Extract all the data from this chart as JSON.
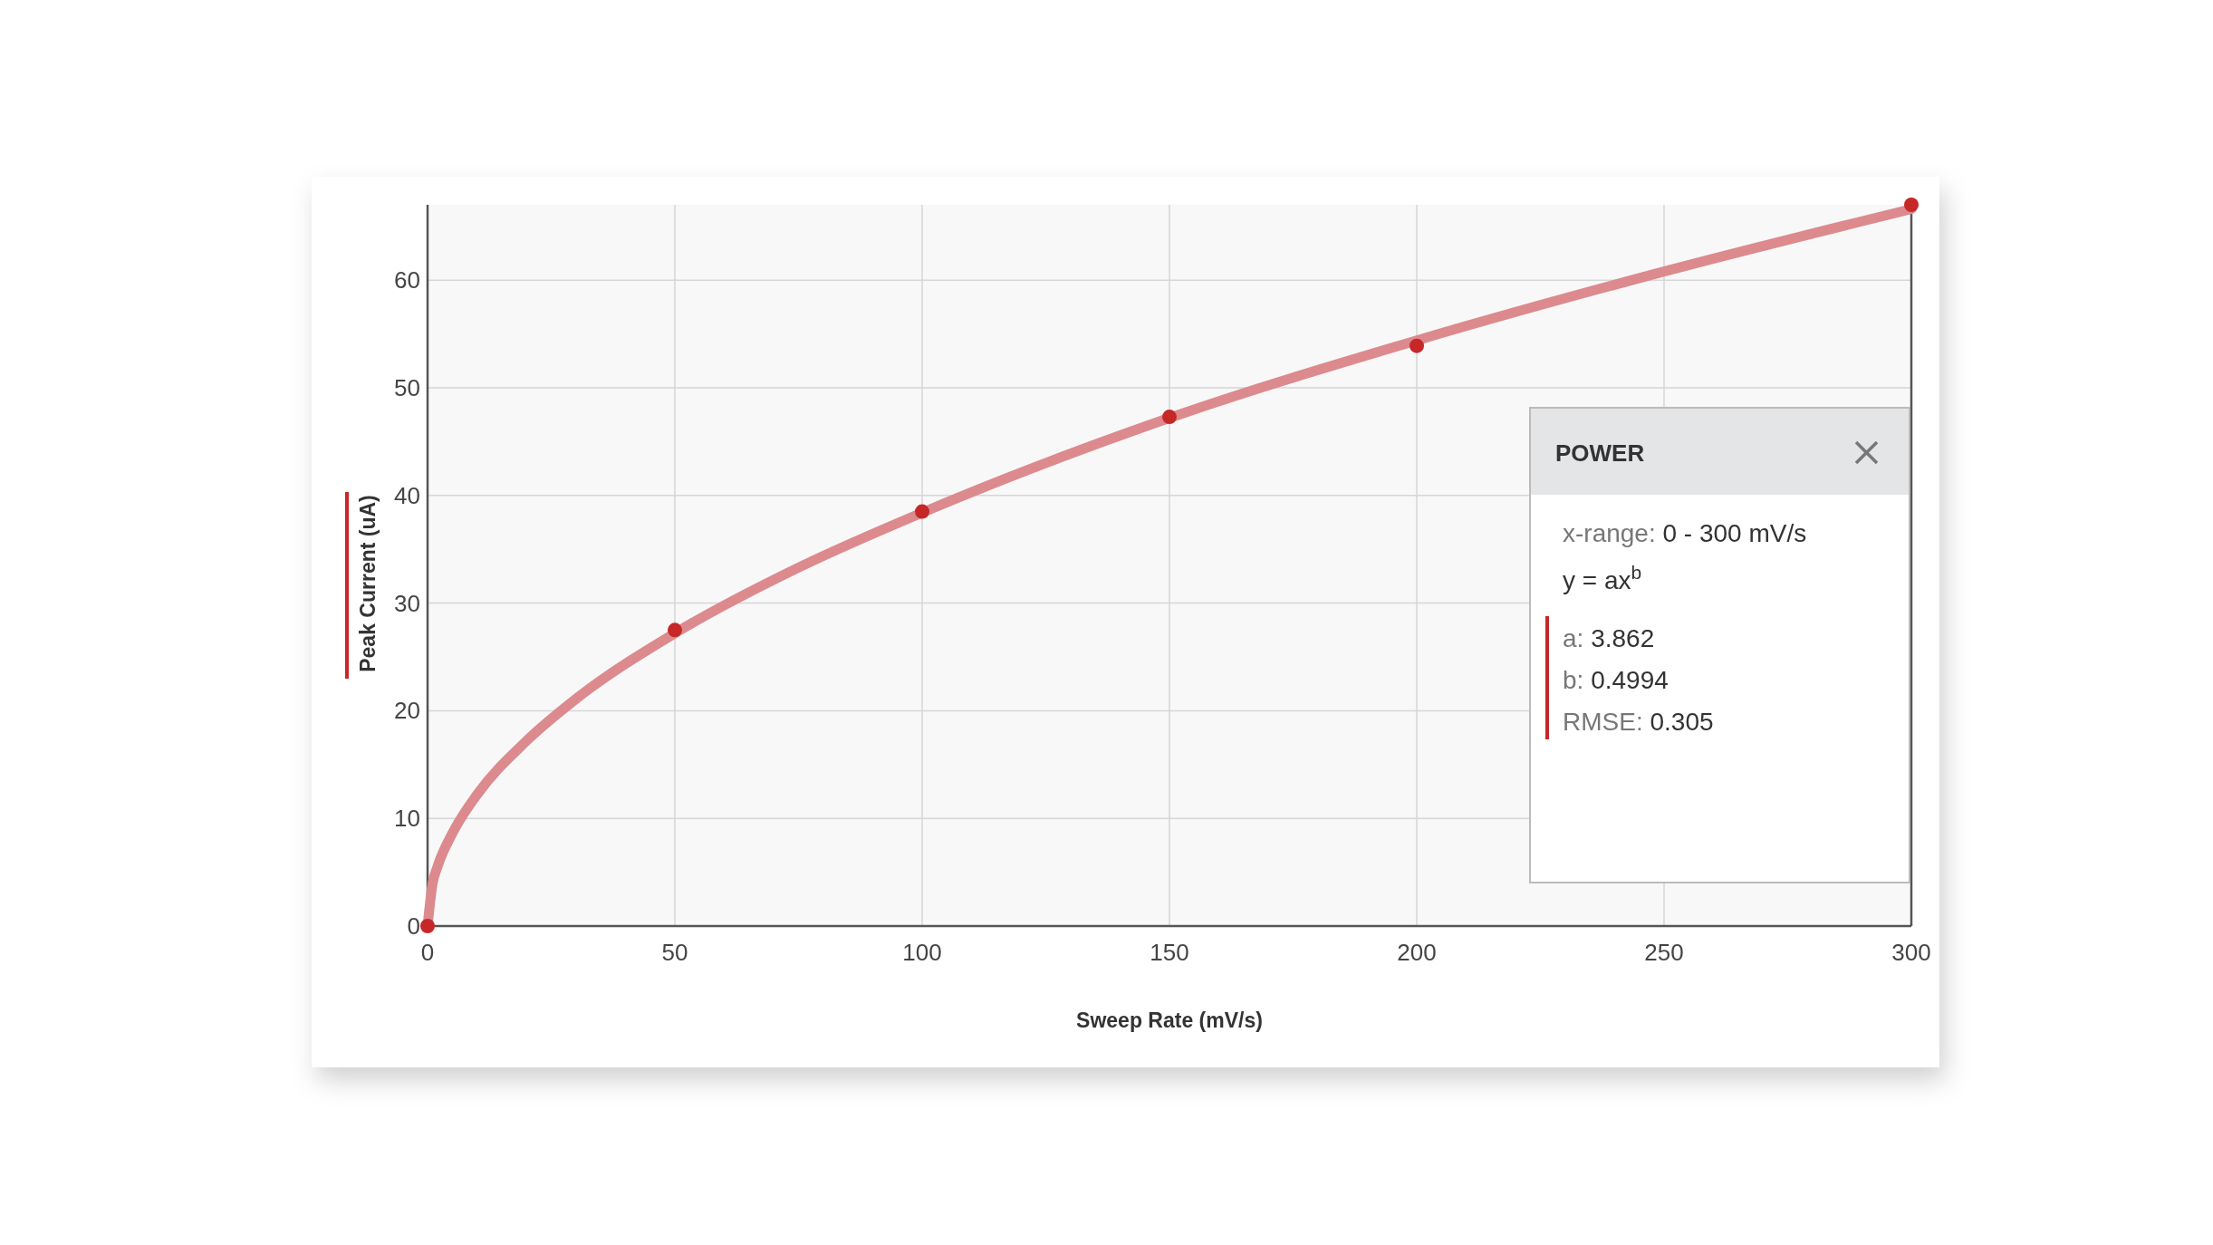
{
  "chart_data": {
    "type": "scatter",
    "xlabel": "Sweep Rate (mV/s)",
    "ylabel": "Peak Current (uA)",
    "xlim": [
      0,
      300
    ],
    "ylim": [
      0,
      67
    ],
    "xticks": [
      0,
      50,
      100,
      150,
      200,
      250,
      300
    ],
    "yticks": [
      0,
      10,
      20,
      30,
      40,
      50,
      60
    ],
    "grid": true,
    "marker": "circle",
    "series": [
      {
        "type": "line",
        "marker": "none",
        "color": "#dc8a8e",
        "x": [
          0,
          1,
          2,
          5,
          10,
          20,
          30,
          50,
          75,
          100,
          150,
          200,
          250,
          300
        ],
        "values": [
          0,
          3.9,
          5.5,
          8.6,
          12.2,
          17.2,
          21.1,
          27.2,
          33.3,
          38.4,
          47.2,
          54.4,
          60.8,
          66.6
        ]
      },
      {
        "color": "#c62828",
        "x": [
          0,
          50,
          100,
          150,
          200,
          300
        ],
        "values": [
          0,
          27.5,
          38.5,
          47.3,
          53.9,
          67
        ]
      }
    ],
    "annotations": [
      "POWER",
      "x-range: 0 - 300 mV/s",
      "y = ax$^{b}$",
      "a: 3.862",
      "b: 0.4994",
      "RMSE: 0.305"
    ]
  }
}
